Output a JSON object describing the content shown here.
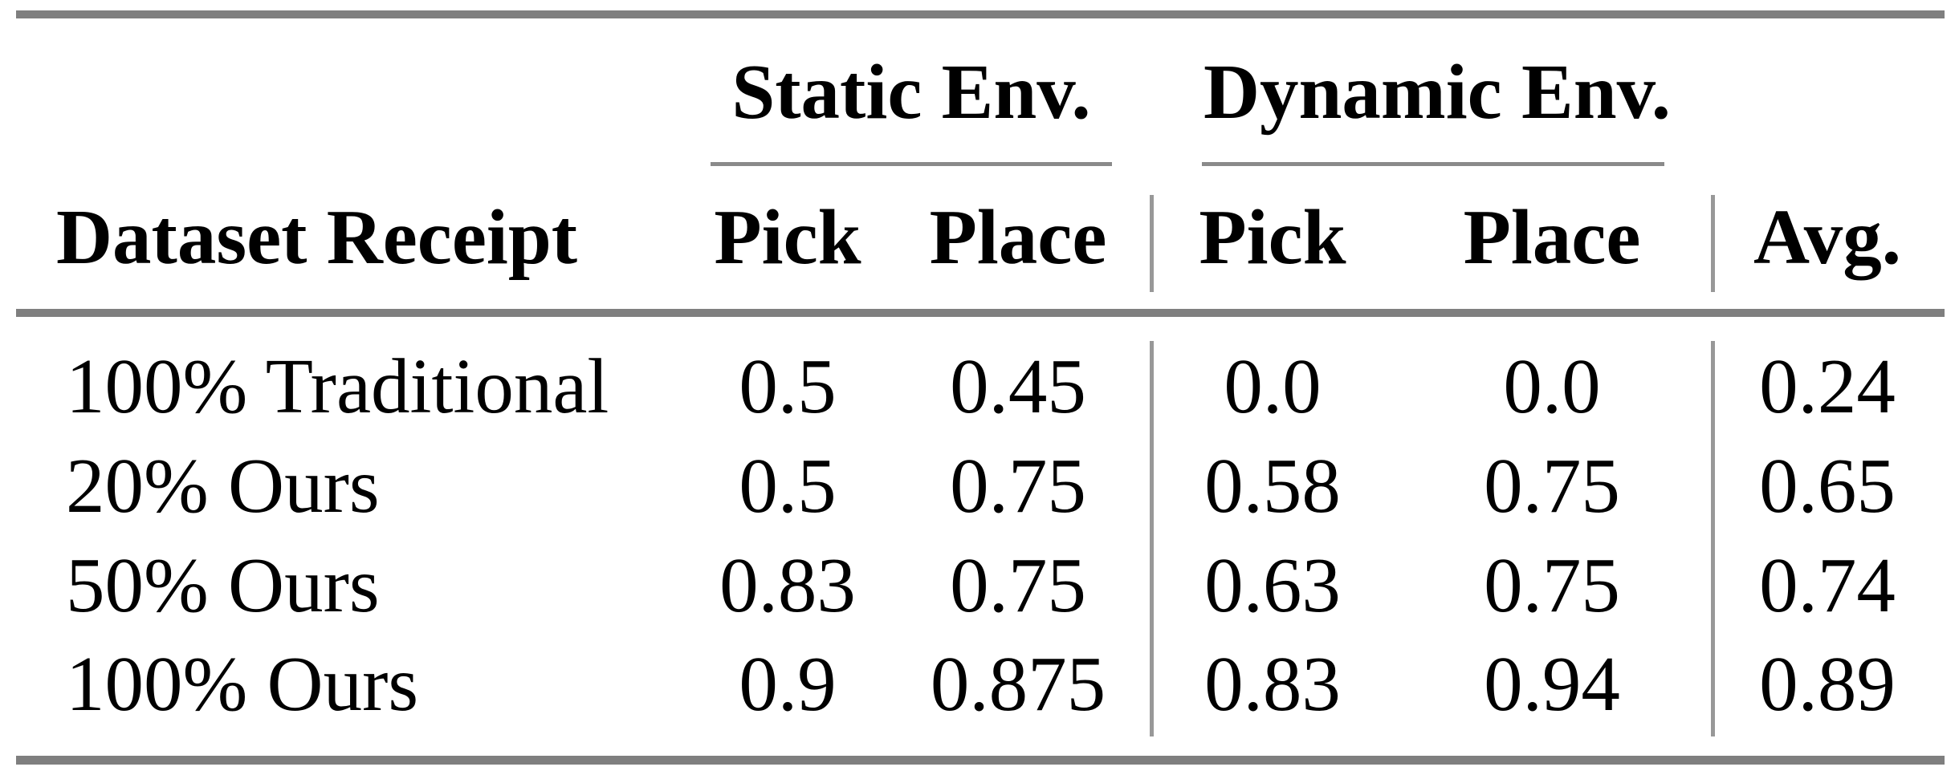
{
  "table": {
    "col_groups": {
      "static": "Static Env.",
      "dynamic": "Dynamic Env."
    },
    "headers": {
      "dataset": "Dataset Receipt",
      "static_pick": "Pick",
      "static_place": "Place",
      "dynamic_pick": "Pick",
      "dynamic_place": "Place",
      "avg": "Avg."
    },
    "rows": [
      {
        "label": "100% Traditional",
        "values": [
          "0.5",
          "0.45",
          "0.0",
          "0.0",
          "0.24"
        ]
      },
      {
        "label": "20% Ours",
        "values": [
          "0.5",
          "0.75",
          "0.58",
          "0.75",
          "0.65"
        ]
      },
      {
        "label": "50% Ours",
        "values": [
          "0.83",
          "0.75",
          "0.63",
          "0.75",
          "0.74"
        ]
      },
      {
        "label": "100% Ours",
        "values": [
          "0.9",
          "0.875",
          "0.83",
          "0.94",
          "0.89"
        ]
      }
    ],
    "colors": {
      "text": "#000000",
      "thick_rule": "#7f7f7f",
      "cmidrule": "#8a8a8a",
      "vline": "#989898"
    }
  }
}
